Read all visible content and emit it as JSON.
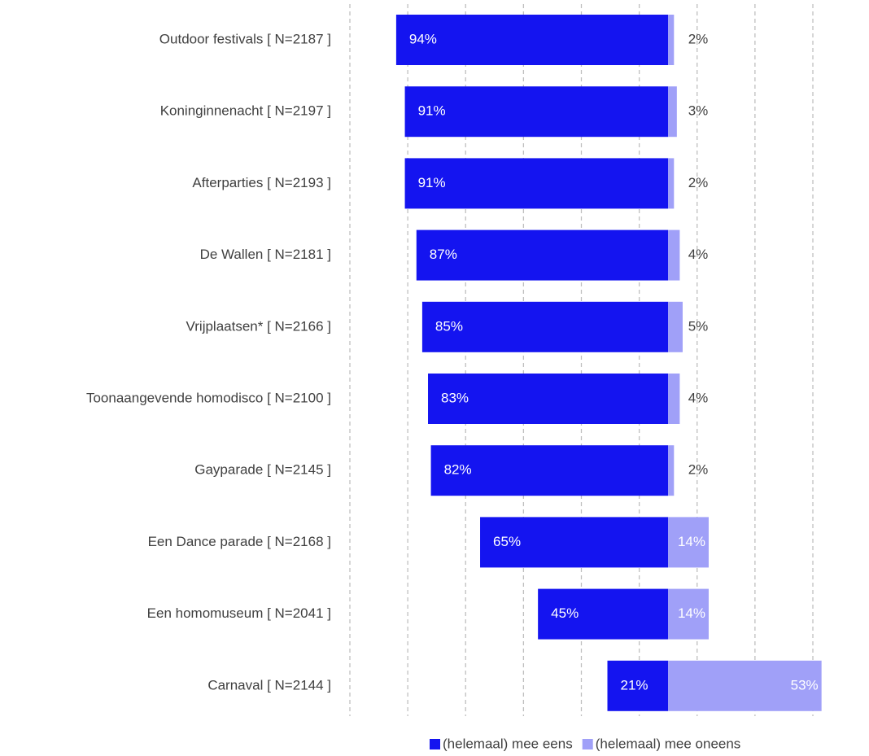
{
  "chart_data": {
    "type": "diverging-bar",
    "categories": [
      "Outdoor festivals [ N=2187 ]",
      "Koninginnenacht [ N=2197 ]",
      "Afterparties [ N=2193 ]",
      "De Wallen [ N=2181 ]",
      "Vrijplaatsen* [ N=2166 ]",
      "Toonaangevende homodisco [ N=2100 ]",
      "Gayparade [ N=2145 ]",
      "Een Dance parade [ N=2168 ]",
      "Een homomuseum [ N=2041 ]",
      "Carnaval [ N=2144 ]"
    ],
    "series": [
      {
        "name": "(helemaal) mee eens",
        "color": "#1414f0",
        "direction": "left",
        "values": [
          94,
          91,
          91,
          87,
          85,
          83,
          82,
          65,
          45,
          21
        ],
        "value_labels": [
          "94%",
          "91%",
          "91%",
          "87%",
          "85%",
          "83%",
          "82%",
          "65%",
          "45%",
          "21%"
        ]
      },
      {
        "name": "(helemaal) mee oneens",
        "color": "#a0a0f8",
        "direction": "right",
        "values": [
          2,
          3,
          2,
          4,
          5,
          4,
          2,
          14,
          14,
          53
        ],
        "value_labels": [
          "2%",
          "3%",
          "2%",
          "4%",
          "5%",
          "4%",
          "2%",
          "14%",
          "14%",
          "53%"
        ]
      }
    ],
    "xlim": [
      -110,
      50
    ],
    "xticks": [
      -110,
      -90,
      -70,
      -50,
      -30,
      -10,
      10,
      30,
      50
    ],
    "grid": true
  }
}
